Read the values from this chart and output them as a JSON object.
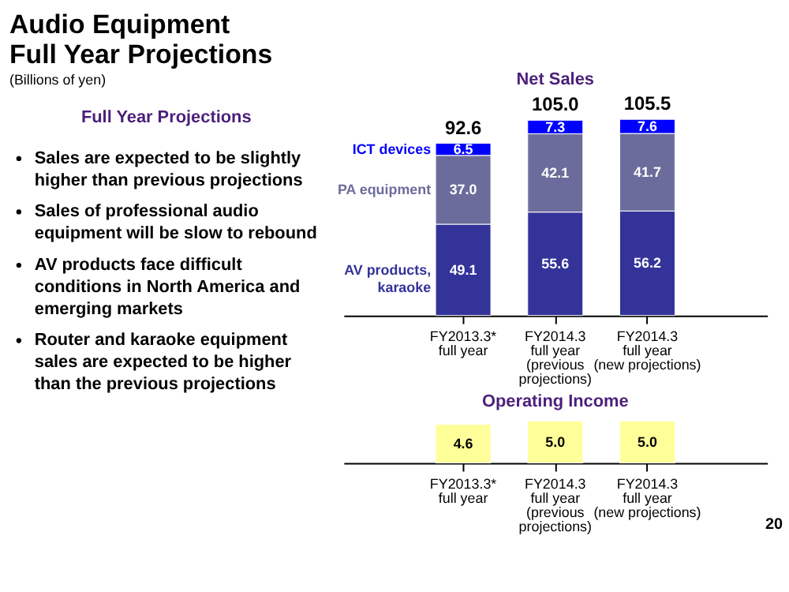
{
  "chart_data": [
    {
      "type": "other",
      "title": "Audio Equipment\nFull Year Projections",
      "subtitle": "(Billions of yen)",
      "annotations": [
        "Full Year Projections",
        "Sales are expected to be slightly higher than previous projections",
        "Sales of professional audio equipment will be slow to rebound",
        "AV products face difficult conditions in North America and emerging markets",
        "Router and karaoke equipment sales are expected to be higher than the previous projections"
      ]
    },
    {
      "type": "bar",
      "title": "Net Sales",
      "stacked": true,
      "categories": [
        "FY2013.3*\nfull year",
        "FY2014.3\nfull year\n(previous\nprojections)",
        "FY2014.3\nfull year\n(new projections)"
      ],
      "series": [
        {
          "name": "AV products, karaoke",
          "color": "#333399",
          "values": [
            49.1,
            55.6,
            56.2
          ],
          "value_labels": [
            "49.1",
            "55.6",
            "56.2"
          ]
        },
        {
          "name": "PA equipment",
          "color": "#6c6c9c",
          "values": [
            37.0,
            42.1,
            41.7
          ],
          "value_labels": [
            "37.0",
            "42.1",
            "41.7"
          ]
        },
        {
          "name": "ICT devices",
          "color": "#0000ff",
          "values": [
            6.5,
            7.3,
            7.6
          ],
          "value_labels": [
            "6.5",
            "7.3",
            "7.6"
          ]
        }
      ],
      "totals": [
        "92.6",
        "105.0",
        "105.5"
      ]
    },
    {
      "type": "bar",
      "title": "Operating Income",
      "categories": [
        "FY2013.3*\nfull year",
        "FY2014.3\nfull year\n(previous\nprojections)",
        "FY2014.3\nfull year\n(new projections)"
      ],
      "values": [
        4.6,
        5.0,
        5.0
      ],
      "value_labels": [
        "4.6",
        "5.0",
        "5.0"
      ],
      "color": "#ffff99",
      "annotations": [
        "20"
      ]
    }
  ]
}
